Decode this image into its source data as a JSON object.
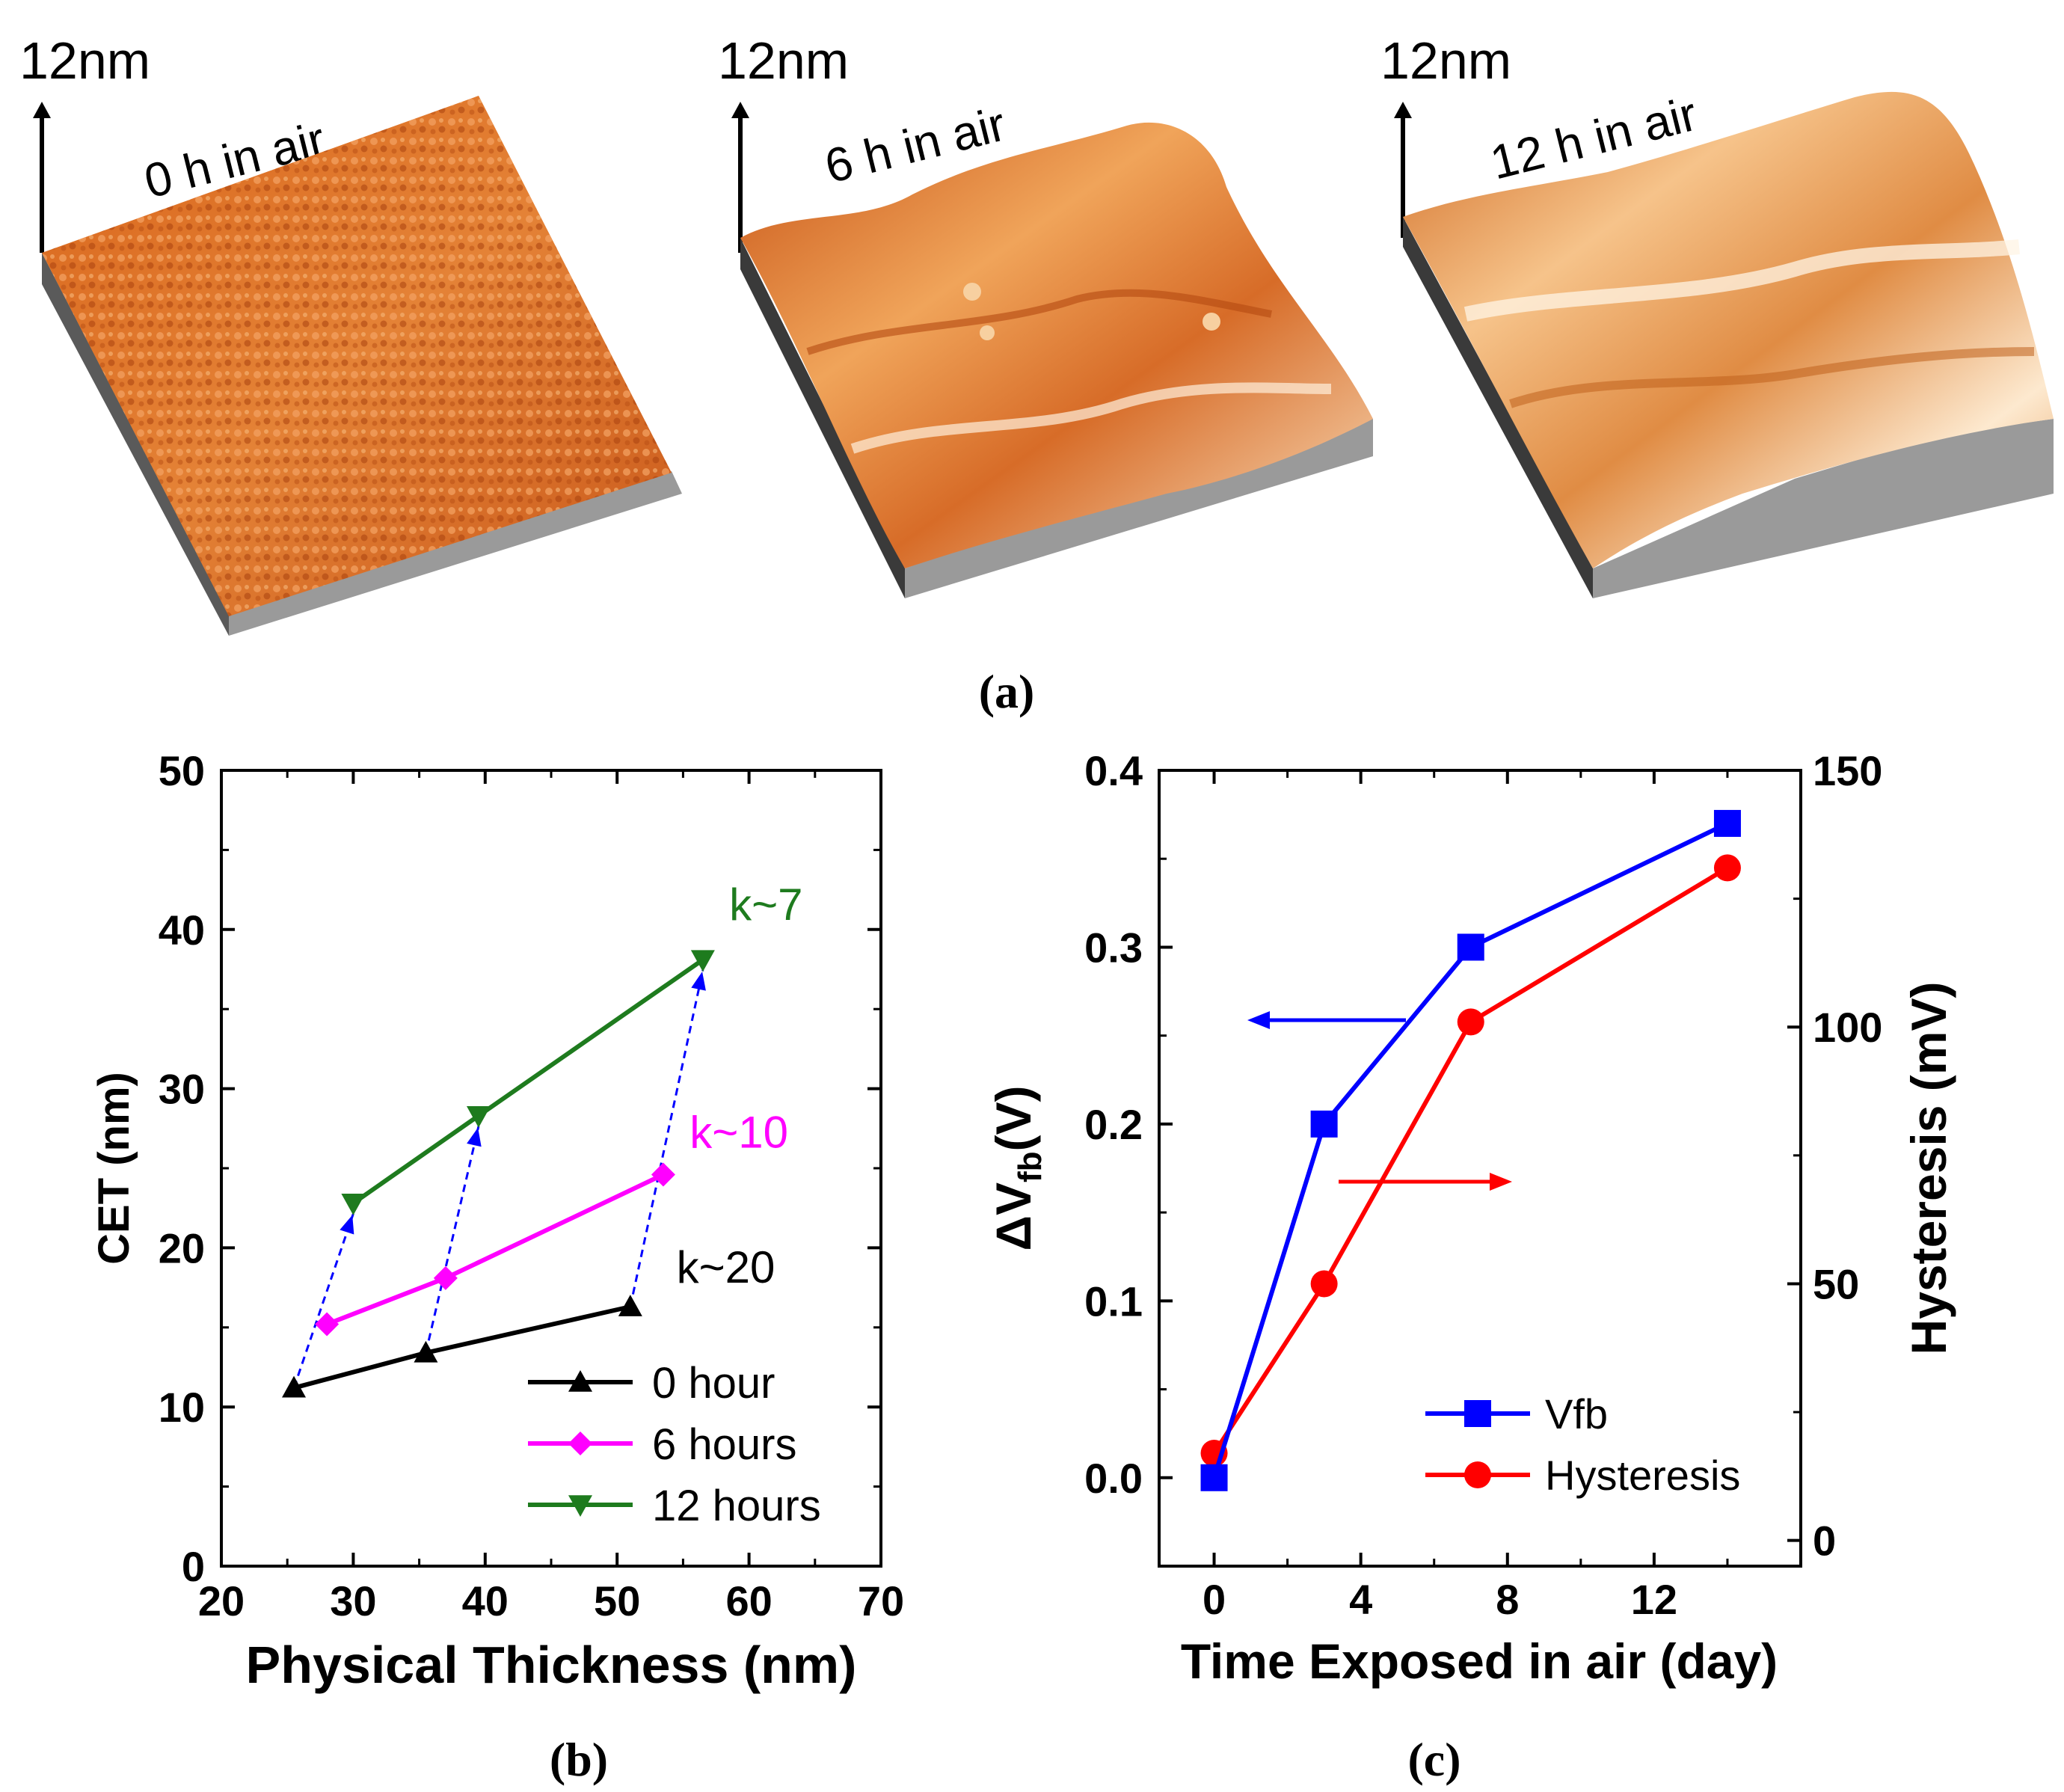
{
  "afm_panels": [
    {
      "scale_label": "12nm",
      "label": "0 h in air",
      "roughness": "fine"
    },
    {
      "scale_label": "12nm",
      "label": "6 h in air",
      "roughness": "medium"
    },
    {
      "scale_label": "12nm",
      "label": "12 h in air",
      "roughness": "coarse"
    }
  ],
  "captions": {
    "a": "(a)",
    "b": "(b)",
    "c": "(c)"
  },
  "colors": {
    "black": "#000000",
    "magenta": "#ff00ff",
    "green": "#1e7b1e",
    "blue": "#0000ff",
    "red": "#ff0000",
    "afm_orange": "#e07a2c",
    "afm_side": "#909090"
  },
  "chart_data": [
    {
      "type": "line",
      "title": "",
      "xlabel": "Physical Thickness (nm)",
      "ylabel": "CET (nm)",
      "xlim": [
        20,
        70
      ],
      "ylim": [
        0,
        50
      ],
      "xticks": [
        "20",
        "30",
        "40",
        "50",
        "60",
        "70"
      ],
      "yticks": [
        "0",
        "10",
        "20",
        "30",
        "40",
        "50"
      ],
      "series": [
        {
          "name": "0 hour",
          "marker": "triangle-up",
          "color": "#000000",
          "x": [
            25.5,
            35.5,
            51
          ],
          "y": [
            11.2,
            13.4,
            16.3
          ]
        },
        {
          "name": "6 hours",
          "marker": "diamond",
          "color": "#ff00ff",
          "x": [
            28,
            37,
            53.5
          ],
          "y": [
            15.2,
            18.1,
            24.6
          ]
        },
        {
          "name": "12 hours",
          "marker": "triangle-down",
          "color": "#1e7b1e",
          "x": [
            30,
            39.5,
            56.5
          ],
          "y": [
            22.8,
            28.3,
            38.1
          ]
        }
      ],
      "transitions": [
        {
          "from": [
            25.5,
            11.2
          ],
          "to": [
            30,
            22.8
          ]
        },
        {
          "from": [
            35.5,
            13.4
          ],
          "to": [
            39.5,
            28.3
          ]
        },
        {
          "from": [
            51,
            16.3
          ],
          "to": [
            56.5,
            38.1
          ]
        }
      ],
      "annotations": [
        {
          "text": "k~7",
          "x": 58.5,
          "y": 40.6,
          "color": "#1e7b1e"
        },
        {
          "text": "k~10",
          "x": 55.5,
          "y": 26.3,
          "color": "#ff00ff"
        },
        {
          "text": "k~20",
          "x": 54.5,
          "y": 17.8,
          "color": "#000000"
        }
      ],
      "legend": "bottom-right"
    },
    {
      "type": "line",
      "title": "",
      "xlabel": "Time Exposed in air (day)",
      "ylabel": "ΔVfb(V)",
      "y2label": "Hysteresis (mV)",
      "xlim": [
        -1.5,
        16
      ],
      "ylim": [
        -0.05,
        0.4
      ],
      "y2lim": [
        -5,
        150
      ],
      "xticks": [
        "0",
        "4",
        "8",
        "12"
      ],
      "yticks": [
        "0.0",
        "0.1",
        "0.2",
        "0.3",
        "0.4"
      ],
      "y2ticks": [
        "0",
        "50",
        "100",
        "150"
      ],
      "series": [
        {
          "name": "Vfb",
          "axis": "left",
          "marker": "square",
          "color": "#0000ff",
          "x": [
            0,
            3,
            7,
            14
          ],
          "y": [
            0.0,
            0.2,
            0.3,
            0.37
          ]
        },
        {
          "name": "Hysteresis",
          "axis": "right",
          "marker": "circle",
          "color": "#ff0000",
          "x": [
            0,
            3,
            7,
            14
          ],
          "y": [
            17,
            50,
            101,
            131
          ]
        }
      ],
      "legend": "bottom-right"
    }
  ]
}
